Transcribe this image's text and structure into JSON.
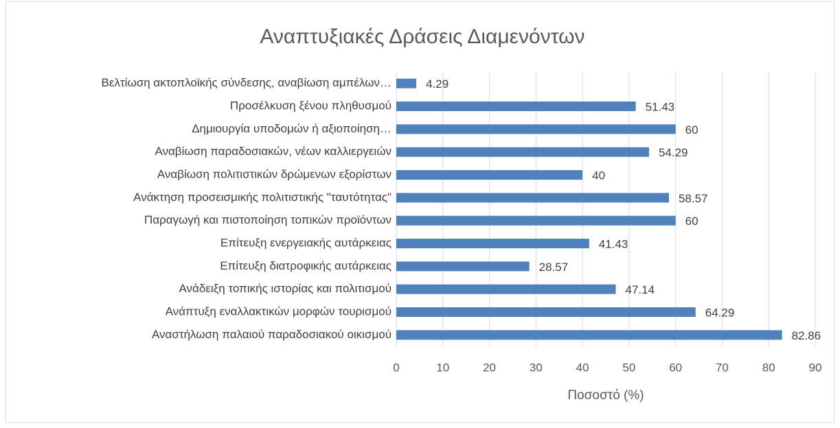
{
  "chart_data": {
    "type": "barh",
    "title": "Αναπτυξιακές Δράσεις Διαμενόντων",
    "x_label": "Ποσοστό (%)",
    "categories": [
      "Βελτίωση ακτοπλοϊκής σύνδεσης, αναβίωση αμπέλων…",
      "Προσέλκυση ξένου πληθυσμού",
      "Δημιουργία υποδομών ή αξιοποίηση…",
      "Αναβίωση παραδοσιακών, νέων καλλιεργειών",
      "Αναβίωση πολιτιστικών δρώμενων εξορίστων",
      "Ανάκτηση προσεισμικής πολιτιστικής \"ταυτότητας\"",
      "Παραγωγή και πιστοποίηση τοπικών προϊόντων",
      "Επίτευξη ενεργειακής αυτάρκειας",
      "Επίτευξη διατροφικής αυτάρκειας",
      "Ανάδειξη τοπικής ιστορίας και πολιτισμού",
      "Ανάπτυξη εναλλακτικών μορφών τουρισμού",
      "Αναστήλωση παλαιού παραδοσιακού οικισμού"
    ],
    "values": [
      4.29,
      51.43,
      60,
      54.29,
      40,
      58.57,
      60,
      41.43,
      28.57,
      47.14,
      64.29,
      82.86
    ],
    "color": "#4f81bd",
    "xlim": [
      0,
      90
    ],
    "xticks": [
      0,
      10,
      20,
      30,
      40,
      50,
      60,
      70,
      80,
      90
    ],
    "grid": true
  }
}
